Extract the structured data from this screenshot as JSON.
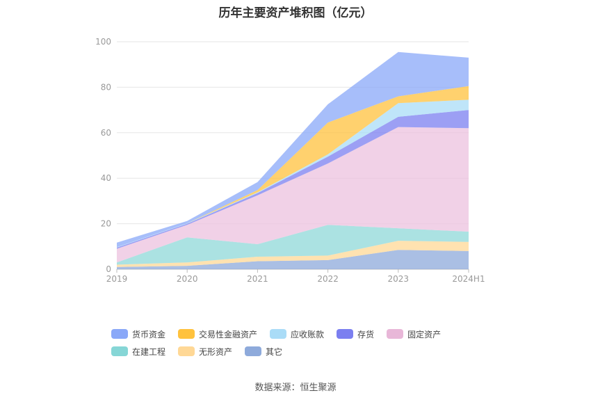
{
  "chart_data": {
    "type": "area",
    "stacked": true,
    "title": "历年主要资产堆积图（亿元）",
    "categories": [
      "2019",
      "2020",
      "2021",
      "2022",
      "2023",
      "2024H1"
    ],
    "ylim": [
      0,
      100
    ],
    "yticks": [
      0,
      20,
      40,
      60,
      80,
      100
    ],
    "series": [
      {
        "name": "其它",
        "color": "#8eaadb",
        "values": [
          1.0,
          1.5,
          3.5,
          4.0,
          8.5,
          8.0
        ]
      },
      {
        "name": "无形资产",
        "color": "#ffd896",
        "values": [
          1.0,
          1.5,
          2.0,
          2.0,
          4.0,
          4.0
        ]
      },
      {
        "name": "在建工程",
        "color": "#8fd8d8",
        "values": [
          1.0,
          11.0,
          5.5,
          13.5,
          5.5,
          4.5
        ]
      },
      {
        "name": "固定资产",
        "color": "#ecc2df",
        "values": [
          6.0,
          5.5,
          21.5,
          27.0,
          44.5,
          45.5
        ]
      },
      {
        "name": "存货",
        "color": "#7b7ff0",
        "values": [
          0.5,
          0.5,
          1.0,
          3.0,
          4.5,
          8.0
        ]
      },
      {
        "name": "应收账款",
        "color": "#aadcf7",
        "values": [
          0.2,
          0.2,
          0.3,
          1.0,
          6.0,
          4.5
        ]
      },
      {
        "name": "交易性金融资产",
        "color": "#ffc23d",
        "values": [
          0,
          0,
          1.0,
          14.0,
          3.0,
          6.0
        ]
      },
      {
        "name": "货币资金",
        "color": "#8aa8f8",
        "values": [
          2.0,
          1.0,
          3.5,
          8.0,
          19.5,
          12.5
        ]
      }
    ]
  },
  "legend": [
    {
      "label": "货币资金",
      "color": "#8aa8f8"
    },
    {
      "label": "交易性金融资产",
      "color": "#ffc23d"
    },
    {
      "label": "应收账款",
      "color": "#aadcf7"
    },
    {
      "label": "存货",
      "color": "#7b7ff0"
    },
    {
      "label": "固定资产",
      "color": "#e8b7d8"
    },
    {
      "label": "在建工程",
      "color": "#86d6d6"
    },
    {
      "label": "无形资产",
      "color": "#ffd896"
    },
    {
      "label": "其它",
      "color": "#8eaadb"
    }
  ],
  "source_text": "数据来源：恒生聚源"
}
